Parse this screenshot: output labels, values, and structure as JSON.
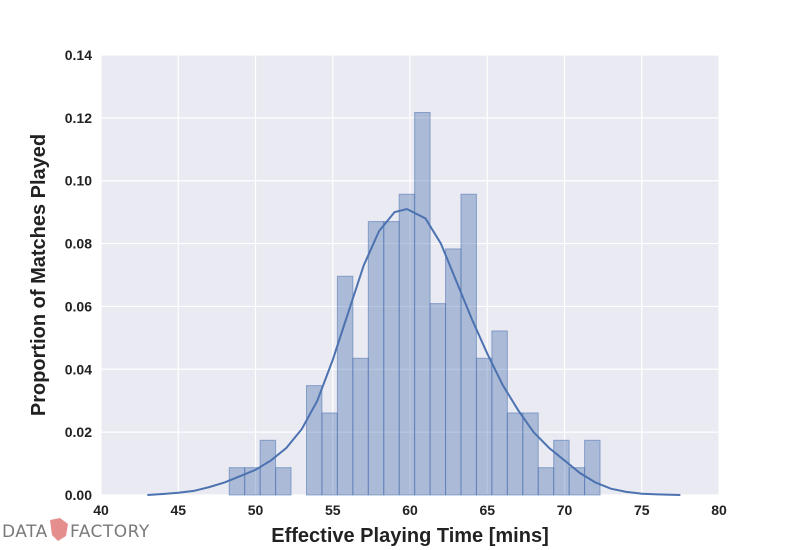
{
  "chart_data": {
    "type": "bar",
    "subtype": "histogram-with-kde",
    "title": "",
    "xlabel": "Effective Playing Time [mins]",
    "ylabel": "Proportion of Matches Played",
    "xlim": [
      40,
      80
    ],
    "ylim": [
      0,
      0.14
    ],
    "xticks": [
      40,
      45,
      50,
      55,
      60,
      65,
      70,
      75,
      80
    ],
    "yticks": [
      0.0,
      0.02,
      0.04,
      0.06,
      0.08,
      0.1,
      0.12,
      0.14
    ],
    "ytick_labels": [
      "0.00",
      "0.02",
      "0.04",
      "0.06",
      "0.08",
      "0.10",
      "0.12",
      "0.14"
    ],
    "grid": true,
    "background_color": "#eaeaf2",
    "bar_color": "#4c72b0",
    "line_color": "#4c72b0",
    "bins": [
      {
        "x0": 48.3,
        "x1": 49.3,
        "value": 0.0087
      },
      {
        "x0": 49.3,
        "x1": 50.3,
        "value": 0.0087
      },
      {
        "x0": 50.3,
        "x1": 51.3,
        "value": 0.0174
      },
      {
        "x0": 51.3,
        "x1": 52.3,
        "value": 0.0087
      },
      {
        "x0": 53.3,
        "x1": 54.3,
        "value": 0.0348
      },
      {
        "x0": 54.3,
        "x1": 55.3,
        "value": 0.0261
      },
      {
        "x0": 55.3,
        "x1": 56.3,
        "value": 0.0696
      },
      {
        "x0": 56.3,
        "x1": 57.3,
        "value": 0.0435
      },
      {
        "x0": 57.3,
        "x1": 58.3,
        "value": 0.087
      },
      {
        "x0": 58.3,
        "x1": 59.3,
        "value": 0.087
      },
      {
        "x0": 59.3,
        "x1": 60.3,
        "value": 0.0957
      },
      {
        "x0": 60.3,
        "x1": 61.3,
        "value": 0.1217
      },
      {
        "x0": 61.3,
        "x1": 62.3,
        "value": 0.0609
      },
      {
        "x0": 62.3,
        "x1": 63.3,
        "value": 0.0783
      },
      {
        "x0": 63.3,
        "x1": 64.3,
        "value": 0.0957
      },
      {
        "x0": 64.3,
        "x1": 65.3,
        "value": 0.0435
      },
      {
        "x0": 65.3,
        "x1": 66.3,
        "value": 0.0522
      },
      {
        "x0": 66.3,
        "x1": 67.3,
        "value": 0.0261
      },
      {
        "x0": 67.3,
        "x1": 68.3,
        "value": 0.0261
      },
      {
        "x0": 68.3,
        "x1": 69.3,
        "value": 0.0087
      },
      {
        "x0": 69.3,
        "x1": 70.3,
        "value": 0.0174
      },
      {
        "x0": 70.3,
        "x1": 71.3,
        "value": 0.0087
      },
      {
        "x0": 71.3,
        "x1": 72.3,
        "value": 0.0174
      }
    ],
    "kde": {
      "x": [
        43,
        44,
        45,
        46,
        47,
        48,
        49,
        50,
        51,
        52,
        53,
        54,
        55,
        56,
        57,
        58,
        59,
        59.8,
        61,
        62,
        63,
        64,
        65,
        66,
        67,
        68,
        69,
        70,
        71,
        72,
        73,
        74,
        75,
        76,
        77.5
      ],
      "y": [
        0.0,
        0.0003,
        0.0007,
        0.0013,
        0.0025,
        0.004,
        0.006,
        0.008,
        0.011,
        0.015,
        0.021,
        0.03,
        0.043,
        0.058,
        0.073,
        0.084,
        0.09,
        0.091,
        0.088,
        0.08,
        0.068,
        0.056,
        0.045,
        0.035,
        0.027,
        0.02,
        0.015,
        0.011,
        0.007,
        0.004,
        0.002,
        0.001,
        0.0004,
        0.0002,
        0.0
      ]
    }
  },
  "watermark": {
    "left_text": "DATA",
    "right_text": "FACTORY",
    "logo_color": "#e07a7a"
  }
}
